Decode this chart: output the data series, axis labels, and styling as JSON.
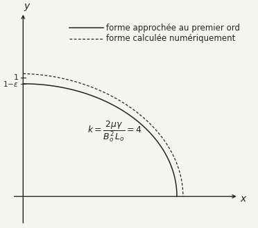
{
  "xlabel": "x",
  "ylabel": "y",
  "legend_solid": "forme approchée au premier ord",
  "legend_dashed": "forme calculée numériquement",
  "epsilon": 0.05,
  "background_color": "#f5f5f0",
  "curve_color": "#222222",
  "axis_color": "#222222",
  "fontsize_legend": 8.5,
  "fontsize_tick": 8,
  "fontsize_label": 10,
  "fontsize_formula": 9,
  "xlim": [
    -0.08,
    1.4
  ],
  "ylim": [
    -0.25,
    1.55
  ],
  "x_axis_y": 0.0,
  "y_axis_x": 0.0
}
